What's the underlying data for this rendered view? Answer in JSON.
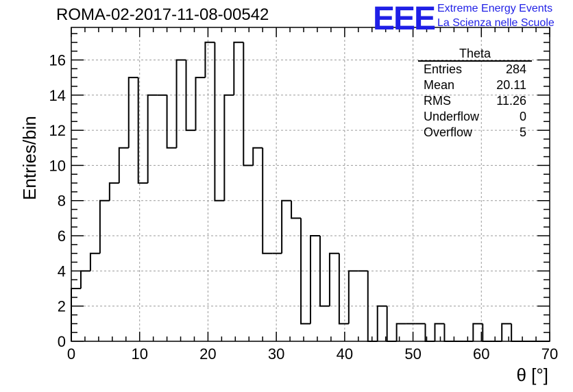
{
  "page": {
    "title": "ROMA-02-2017-11-08-00542",
    "logo": {
      "mark": "EEE",
      "line1": "Extreme Energy Events",
      "line2": "La Scienza nelle Scuole"
    }
  },
  "stats_box": {
    "title": "Theta",
    "rows": [
      {
        "label": "Entries",
        "value": "284"
      },
      {
        "label": "Mean",
        "value": "20.11"
      },
      {
        "label": "RMS",
        "value": "11.26"
      },
      {
        "label": "Underflow",
        "value": "0"
      },
      {
        "label": "Overflow",
        "value": "5"
      }
    ]
  },
  "chart_data": {
    "type": "bar",
    "style": "step-histogram",
    "title": "ROMA-02-2017-11-08-00542",
    "xlabel": "θ [°]",
    "ylabel": "Entries/bin",
    "xlim": [
      0,
      70
    ],
    "ylim": [
      0,
      17.85
    ],
    "bin_width": 1.4,
    "x_ticks": [
      0,
      10,
      20,
      30,
      40,
      50,
      60,
      70
    ],
    "y_ticks": [
      0,
      2,
      4,
      6,
      8,
      10,
      12,
      14,
      16
    ],
    "grid": true,
    "legend_placement": "top-right",
    "values": [
      3,
      4,
      5,
      8,
      9,
      11,
      15,
      9,
      14,
      14,
      11,
      16,
      12,
      15,
      17,
      8,
      14,
      17,
      10,
      11,
      5,
      5,
      8,
      7,
      1,
      6,
      2,
      5,
      1,
      4,
      4,
      0,
      2,
      0,
      1,
      1,
      1,
      0,
      1,
      0,
      0,
      0,
      1,
      0,
      0,
      1,
      0,
      0,
      0,
      0
    ]
  }
}
